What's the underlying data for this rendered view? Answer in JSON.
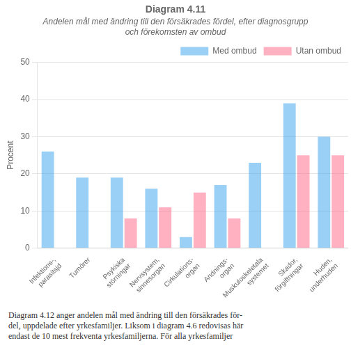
{
  "chart_data": {
    "type": "bar",
    "title": "Diagram 4.11",
    "subtitle": [
      "Andelen mål med ändring till den försäkrades fördel, efter diagnosgrupp",
      "och förekomsten av ombud"
    ],
    "ylabel": "Procent",
    "categories": [
      "Infektions-,\nparasitsjd",
      "Tumörer",
      "Psykiska\nstörningar",
      "Nervsystem,\nsinnesorgan",
      "Cirkulations-\norgan",
      "Andnings-\norgan",
      "Muskuloskeletala\nsystemet",
      "Skador,\nförgiftningar",
      "Huden,\nunderhuden"
    ],
    "series": [
      {
        "name": "Med ombud",
        "values": [
          26,
          19,
          19,
          16,
          3,
          17,
          23,
          39,
          30
        ]
      },
      {
        "name": "Utan ombud",
        "values": [
          0,
          0,
          8,
          11,
          15,
          8,
          0,
          25,
          25
        ]
      }
    ],
    "ylim": [
      0,
      50
    ],
    "yticks": [
      0,
      10,
      20,
      30,
      40,
      50
    ],
    "grid": true,
    "legend": "upper right",
    "annotations": [
      "Diagram 4.12 anger andelen mål med ändring till den försäkrades för-",
      "del, uppdelade efter yrkesfamiljer. Liksom i diagram 4.6 redovisas här",
      "endast de 10 mest frekventa yrkesfamiljerna. För alla yrkesfamiljer"
    ]
  }
}
